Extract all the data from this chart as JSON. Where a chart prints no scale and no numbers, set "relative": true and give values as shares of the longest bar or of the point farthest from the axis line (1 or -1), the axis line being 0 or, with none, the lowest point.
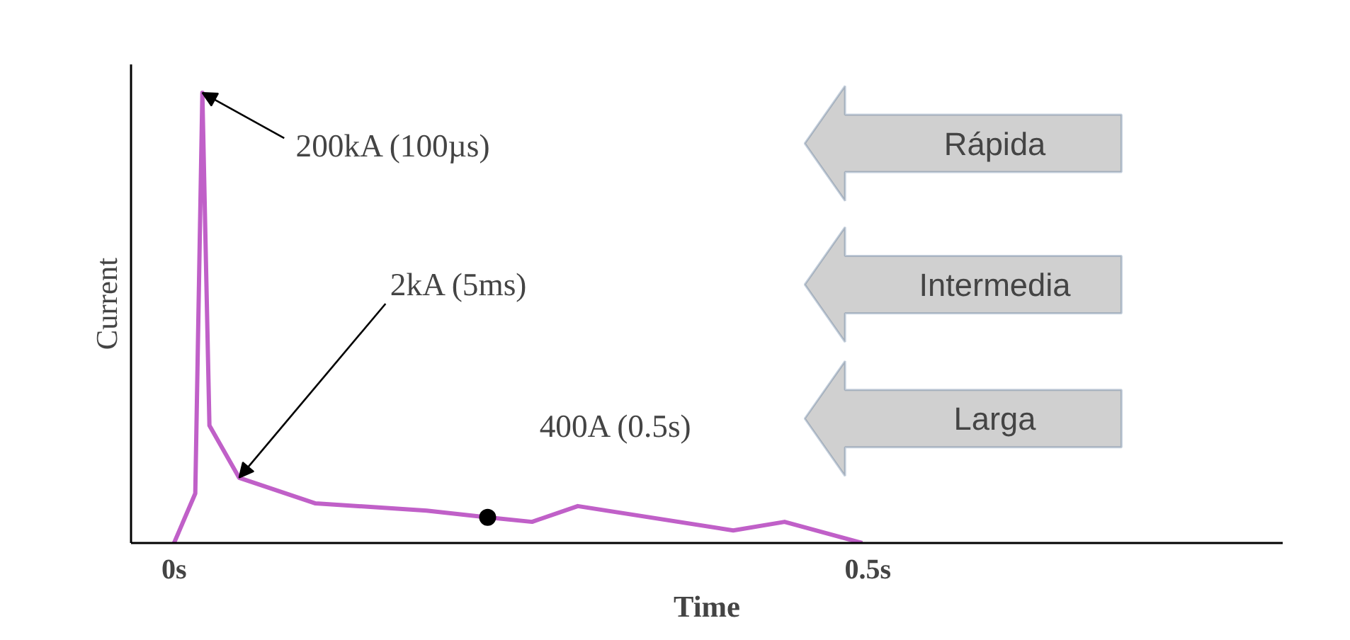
{
  "chart_data": {
    "type": "line",
    "relative": true,
    "xlabel": "Time",
    "ylabel": "Current",
    "xlim": [
      -0.031,
      0.799
    ],
    "xticks": [
      {
        "value": 0,
        "label": "0s"
      },
      {
        "value": 0.5,
        "label": "0.5s"
      }
    ],
    "grid": false,
    "tick_labels": "x",
    "series": [
      {
        "color": "#c060c8",
        "x": [
          0,
          0.0153,
          0.0204,
          0.0255,
          0.0469,
          0.102,
          0.182,
          0.226,
          0.258,
          0.291,
          0.403,
          0.44,
          0.496
        ],
        "values": [
          0,
          0.11,
          1,
          0.261,
          0.145,
          0.088,
          0.072,
          0.057,
          0.047,
          0.082,
          0.028,
          0.047,
          0
        ]
      },
      {
        "type": "scatter",
        "color": "#000000",
        "marker": "circle",
        "x": [
          0.226
        ],
        "values": [
          0.057
        ]
      }
    ],
    "annotations": [
      {
        "text": "200kA (100µs)",
        "x": 0.0204,
        "y": 1
      },
      {
        "text": "2kA (5ms)",
        "x": 0.0469,
        "y": 0.145
      },
      {
        "text": "400A (0.5s)",
        "x": 0.226,
        "y": 0.057
      },
      "Rápida",
      "Intermedia",
      "Larga"
    ]
  }
}
